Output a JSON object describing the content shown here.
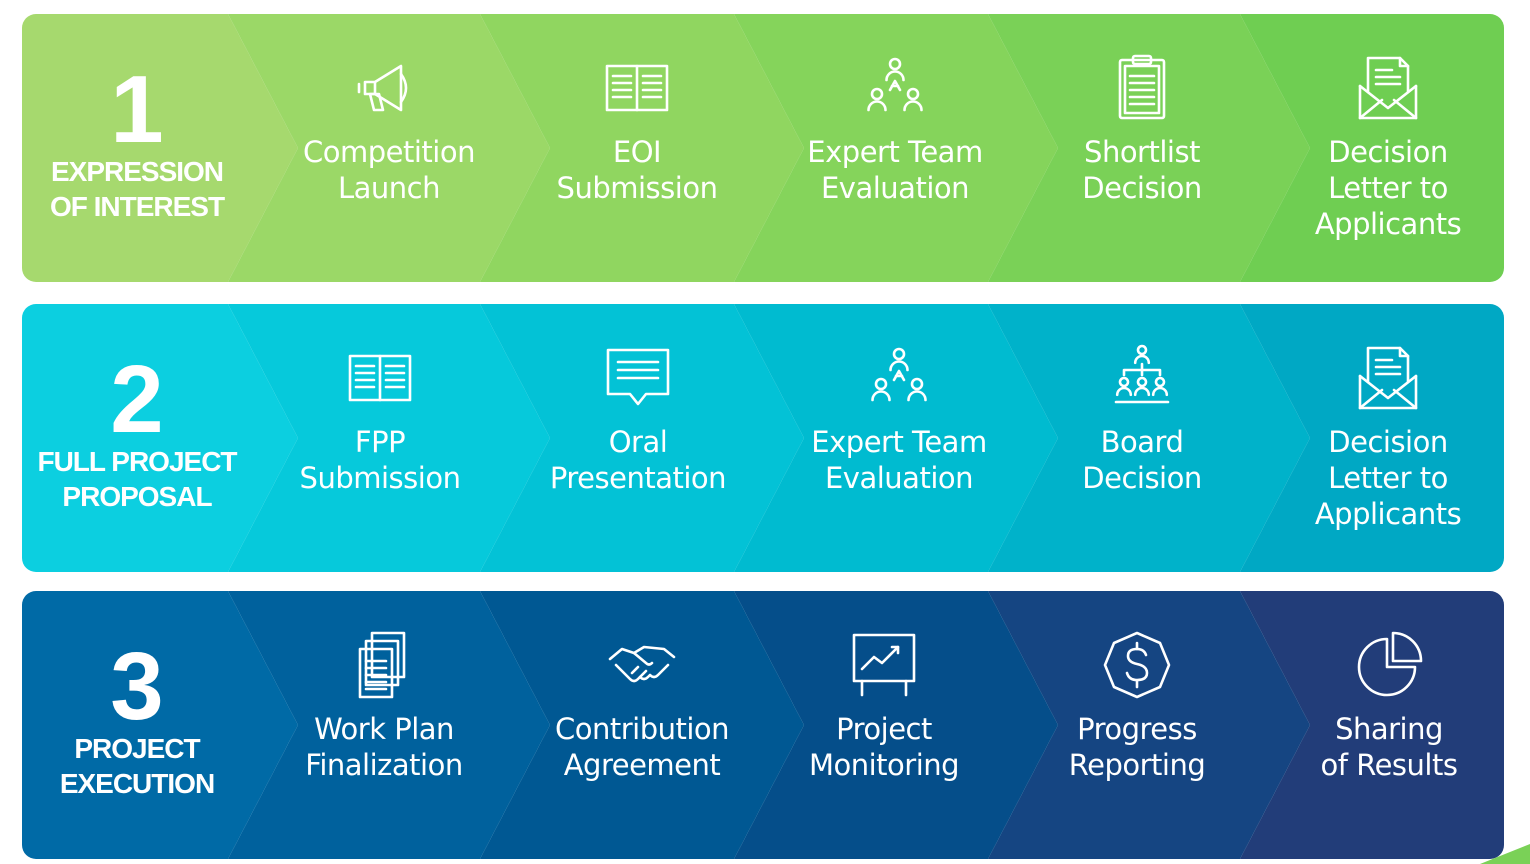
{
  "phases": [
    {
      "number": "1",
      "title": "EXPRESSION\nOF INTEREST",
      "colors": [
        "#a6d96e",
        "#9bd867",
        "#90d660",
        "#85d45b",
        "#7ad157",
        "#6fce52"
      ],
      "steps": [
        {
          "label": "Competition\nLaunch",
          "icon": "megaphone-icon"
        },
        {
          "label": "EOI\nSubmission",
          "icon": "open-book-icon"
        },
        {
          "label": "Expert Team\nEvaluation",
          "icon": "team-icon"
        },
        {
          "label": "Shortlist\nDecision",
          "icon": "clipboard-icon"
        },
        {
          "label": "Decision\nLetter to\nApplicants",
          "icon": "envelope-letter-icon"
        }
      ]
    },
    {
      "number": "2",
      "title": "FULL PROJECT\nPROPOSAL",
      "colors": [
        "#0ccfe0",
        "#06c9db",
        "#03c2d6",
        "#00bbd0",
        "#00b2ca",
        "#00a8c4"
      ],
      "steps": [
        {
          "label": "FPP\nSubmission",
          "icon": "open-book-icon"
        },
        {
          "label": "Oral\nPresentation",
          "icon": "speech-bubble-icon"
        },
        {
          "label": "Expert Team\nEvaluation",
          "icon": "team-icon"
        },
        {
          "label": "Board\nDecision",
          "icon": "org-chart-icon"
        },
        {
          "label": "Decision\nLetter to\nApplicants",
          "icon": "envelope-letter-icon"
        }
      ]
    },
    {
      "number": "3",
      "title": "PROJECT\nEXECUTION",
      "colors": [
        "#006aa6",
        "#00619d",
        "#005893",
        "#054e8a",
        "#154582",
        "#223d79"
      ],
      "steps": [
        {
          "label": "Work Plan\nFinalization",
          "icon": "documents-icon"
        },
        {
          "label": "Contribution\nAgreement",
          "icon": "handshake-icon"
        },
        {
          "label": "Project\nMonitoring",
          "icon": "chart-board-icon"
        },
        {
          "label": "Progress\nReporting",
          "icon": "dollar-coin-icon"
        },
        {
          "label": "Sharing\nof Results",
          "icon": "pie-chart-icon"
        }
      ]
    }
  ]
}
